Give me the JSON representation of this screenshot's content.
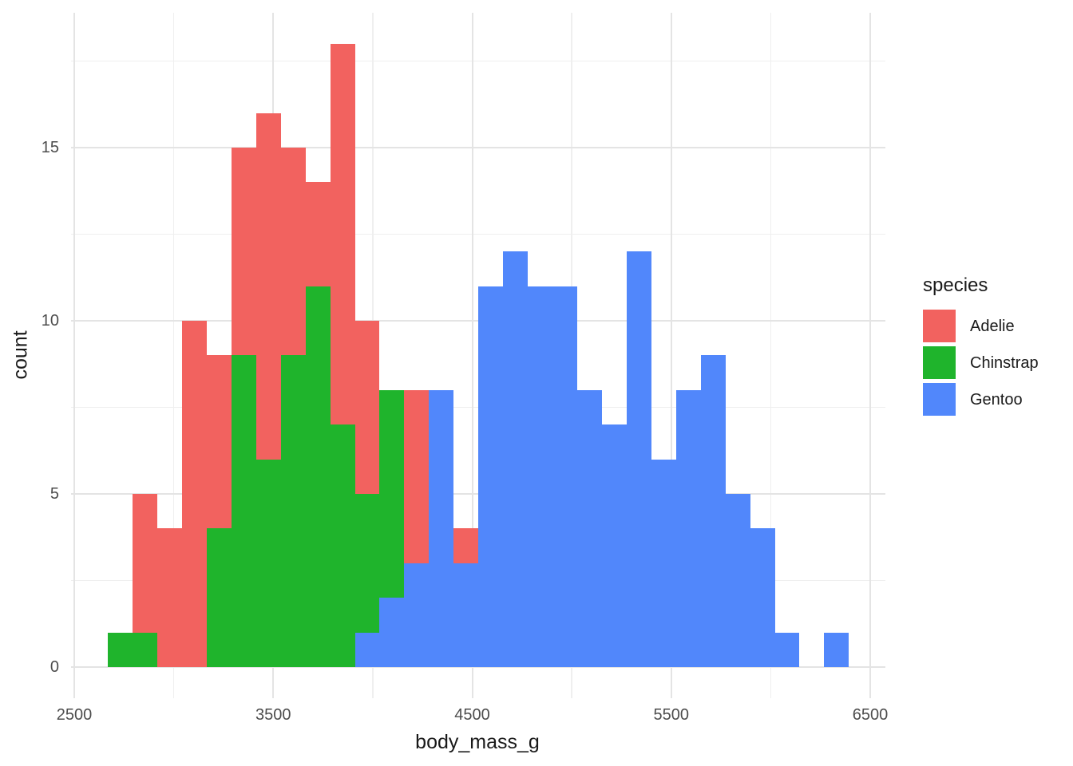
{
  "chart": {
    "x_axis": {
      "label": "body_mass_g"
    },
    "y_axis": {
      "label": "count"
    },
    "legend": {
      "title": "species",
      "items": [
        {
          "label": "Adelie",
          "color": "#f2625f"
        },
        {
          "label": "Chinstrap",
          "color": "#1fb42c"
        },
        {
          "label": "Gentoo",
          "color": "#5187fb"
        }
      ]
    }
  },
  "chart_data": {
    "type": "histogram",
    "mode": "overlay-identity-opaque",
    "title": "",
    "xlabel": "body_mass_g",
    "ylabel": "count",
    "bin_start": 2669,
    "bin_width": 124.14,
    "n_bins": 30,
    "draw_order": [
      "Adelie",
      "Chinstrap",
      "Gentoo"
    ],
    "series": [
      {
        "name": "Adelie",
        "color": "#f2625f",
        "counts": [
          0,
          5,
          4,
          10,
          9,
          15,
          16,
          15,
          14,
          18,
          10,
          0,
          8,
          0,
          4,
          0,
          0,
          0,
          0,
          0,
          0,
          0,
          0,
          0,
          0,
          0,
          0,
          0,
          0,
          0
        ]
      },
      {
        "name": "Chinstrap",
        "color": "#1fb42c",
        "counts": [
          1,
          1,
          0,
          0,
          4,
          9,
          6,
          9,
          11,
          7,
          5,
          8,
          0,
          0,
          0,
          0,
          0,
          0,
          0,
          0,
          0,
          0,
          0,
          0,
          0,
          0,
          0,
          0,
          0,
          0
        ]
      },
      {
        "name": "Gentoo",
        "color": "#5187fb",
        "counts": [
          0,
          0,
          0,
          0,
          0,
          0,
          0,
          0,
          0,
          0,
          1,
          2,
          3,
          8,
          3,
          11,
          12,
          11,
          11,
          8,
          7,
          12,
          6,
          8,
          9,
          5,
          4,
          1,
          0,
          1
        ]
      }
    ],
    "x_ticks": [
      2500,
      3500,
      4500,
      5500,
      6500
    ],
    "x_minor_ticks": [
      3000,
      4000,
      5000,
      6000
    ],
    "y_ticks": [
      0,
      5,
      10,
      15
    ],
    "y_minor_ticks": [
      2.5,
      7.5,
      12.5,
      17.5
    ],
    "xlim": [
      2483,
      6579
    ],
    "ylim": [
      -0.9,
      18.9
    ],
    "grid": true,
    "legend_position": "right",
    "note": "per-bin counts as visibly rendered; opaque bars overlaid in draw_order"
  }
}
